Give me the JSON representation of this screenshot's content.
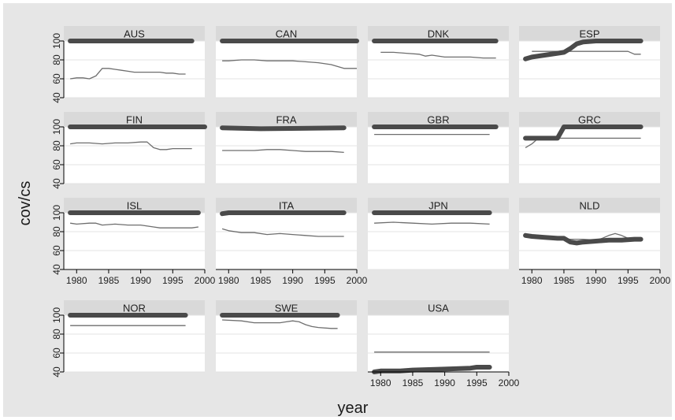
{
  "chart_data": {
    "type": "line",
    "ylabel": "cov/cs",
    "xlabel": "year",
    "xlim": [
      1978,
      2000
    ],
    "ylim": [
      40,
      100
    ],
    "x_ticks": [
      1980,
      1985,
      1990,
      1995,
      2000
    ],
    "y_ticks": [
      40,
      60,
      80,
      100
    ],
    "series_legend": "",
    "panels": [
      {
        "name": "AUS",
        "thick": {
          "x": [
            1979,
            1998
          ],
          "y": [
            100,
            100
          ]
        },
        "thin": {
          "x": [
            1979,
            1980,
            1981,
            1982,
            1983,
            1984,
            1985,
            1986,
            1987,
            1988,
            1989,
            1990,
            1991,
            1992,
            1993,
            1994,
            1995,
            1996,
            1997
          ],
          "y": [
            60,
            61,
            61,
            60,
            63,
            71,
            71,
            70,
            69,
            68,
            67,
            67,
            67,
            67,
            67,
            66,
            66,
            65,
            65
          ]
        }
      },
      {
        "name": "CAN",
        "thick": {
          "x": [
            1979,
            2000
          ],
          "y": [
            100,
            100
          ]
        },
        "thin": {
          "x": [
            1979,
            1980,
            1982,
            1984,
            1986,
            1988,
            1990,
            1992,
            1994,
            1996,
            1997,
            1998,
            2000
          ],
          "y": [
            79,
            79,
            80,
            80,
            79,
            79,
            79,
            78,
            77,
            75,
            73,
            71,
            71
          ]
        }
      },
      {
        "name": "DNK",
        "thick": {
          "x": [
            1979,
            1998
          ],
          "y": [
            100,
            100
          ]
        },
        "thin": {
          "x": [
            1980,
            1982,
            1984,
            1986,
            1987,
            1988,
            1990,
            1992,
            1994,
            1996,
            1998
          ],
          "y": [
            88,
            88,
            87,
            86,
            84,
            85,
            83,
            83,
            83,
            82,
            82
          ]
        }
      },
      {
        "name": "ESP",
        "thick": {
          "x": [
            1979,
            1980,
            1982,
            1984,
            1985,
            1986,
            1987,
            1988,
            1990,
            1992,
            1994,
            1996,
            1997
          ],
          "y": [
            81,
            83,
            85,
            87,
            88,
            92,
            97,
            99,
            100,
            100,
            100,
            100,
            100
          ]
        },
        "thin": {
          "x": [
            1980,
            1984,
            1986,
            1990,
            1995,
            1996,
            1997
          ],
          "y": [
            89,
            89,
            89,
            89,
            89,
            86,
            86
          ]
        }
      },
      {
        "name": "FIN",
        "thick": {
          "x": [
            1979,
            2000
          ],
          "y": [
            100,
            100
          ]
        },
        "thin": {
          "x": [
            1979,
            1980,
            1982,
            1984,
            1986,
            1988,
            1990,
            1991,
            1992,
            1993,
            1994,
            1995,
            1996,
            1998
          ],
          "y": [
            82,
            83,
            83,
            82,
            83,
            83,
            84,
            84,
            78,
            76,
            76,
            77,
            77,
            77
          ]
        }
      },
      {
        "name": "FRA",
        "thick": {
          "x": [
            1979,
            1985,
            1998
          ],
          "y": [
            99,
            98,
            99
          ]
        },
        "thin": {
          "x": [
            1979,
            1982,
            1984,
            1986,
            1988,
            1990,
            1992,
            1994,
            1996,
            1998
          ],
          "y": [
            75,
            75,
            75,
            76,
            76,
            75,
            74,
            74,
            74,
            73
          ]
        }
      },
      {
        "name": "GBR",
        "thick": {
          "x": [
            1979,
            1998
          ],
          "y": [
            100,
            100
          ]
        },
        "thin": {
          "x": [
            1979,
            1997
          ],
          "y": [
            92,
            92
          ]
        }
      },
      {
        "name": "GRC",
        "thick": {
          "x": [
            1979,
            1983,
            1984,
            1985,
            1997
          ],
          "y": [
            88,
            88,
            88,
            100,
            100
          ]
        },
        "thin": {
          "x": [
            1979,
            1980,
            1981,
            1982,
            1997
          ],
          "y": [
            78,
            82,
            88,
            88,
            88
          ]
        }
      },
      {
        "name": "ISL",
        "thick": {
          "x": [
            1979,
            1999
          ],
          "y": [
            100,
            100
          ]
        },
        "thin": {
          "x": [
            1979,
            1980,
            1982,
            1983,
            1984,
            1986,
            1988,
            1990,
            1992,
            1993,
            1994,
            1996,
            1998,
            1999
          ],
          "y": [
            89,
            88,
            89,
            89,
            87,
            88,
            87,
            87,
            85,
            84,
            84,
            84,
            84,
            85
          ]
        }
      },
      {
        "name": "ITA",
        "thick": {
          "x": [
            1979,
            1980,
            1998
          ],
          "y": [
            99,
            100,
            100
          ]
        },
        "thin": {
          "x": [
            1979,
            1980,
            1982,
            1984,
            1986,
            1988,
            1990,
            1992,
            1994,
            1996,
            1998
          ],
          "y": [
            83,
            81,
            79,
            79,
            77,
            78,
            77,
            76,
            75,
            75,
            75
          ]
        }
      },
      {
        "name": "JPN",
        "thick": {
          "x": [
            1979,
            1997
          ],
          "y": [
            100,
            100
          ]
        },
        "thin": {
          "x": [
            1979,
            1982,
            1985,
            1988,
            1991,
            1994,
            1997
          ],
          "y": [
            89,
            90,
            89,
            88,
            89,
            89,
            88
          ]
        }
      },
      {
        "name": "NLD",
        "thick": {
          "x": [
            1979,
            1980,
            1982,
            1984,
            1985,
            1986,
            1987,
            1988,
            1990,
            1992,
            1994,
            1996,
            1997
          ],
          "y": [
            76,
            75,
            74,
            73,
            73,
            69,
            68,
            69,
            70,
            71,
            71,
            72,
            72
          ]
        },
        "thin": {
          "x": [
            1979,
            1982,
            1984,
            1986,
            1988,
            1990,
            1991,
            1992,
            1993,
            1994,
            1995,
            1996,
            1997
          ],
          "y": [
            75,
            74,
            73,
            72,
            72,
            71,
            73,
            76,
            78,
            76,
            73,
            72,
            72
          ]
        }
      },
      {
        "name": "NOR",
        "thick": {
          "x": [
            1979,
            1997
          ],
          "y": [
            100,
            100
          ]
        },
        "thin": {
          "x": [
            1979,
            1997
          ],
          "y": [
            89,
            89
          ]
        }
      },
      {
        "name": "SWE",
        "thick": {
          "x": [
            1979,
            1997
          ],
          "y": [
            100,
            100
          ]
        },
        "thin": {
          "x": [
            1979,
            1982,
            1984,
            1986,
            1988,
            1989,
            1990,
            1991,
            1992,
            1993,
            1994,
            1996,
            1997
          ],
          "y": [
            95,
            94,
            92,
            92,
            92,
            93,
            94,
            93,
            90,
            88,
            87,
            86,
            86
          ]
        }
      },
      {
        "name": "USA",
        "thick": {
          "x": [
            1979,
            1980,
            1983,
            1985,
            1990,
            1994,
            1995,
            1997
          ],
          "y": [
            40,
            41,
            41,
            42,
            43,
            44,
            45,
            45
          ]
        },
        "thin": {
          "x": [
            1979,
            1997
          ],
          "y": [
            61,
            61
          ]
        }
      }
    ]
  }
}
